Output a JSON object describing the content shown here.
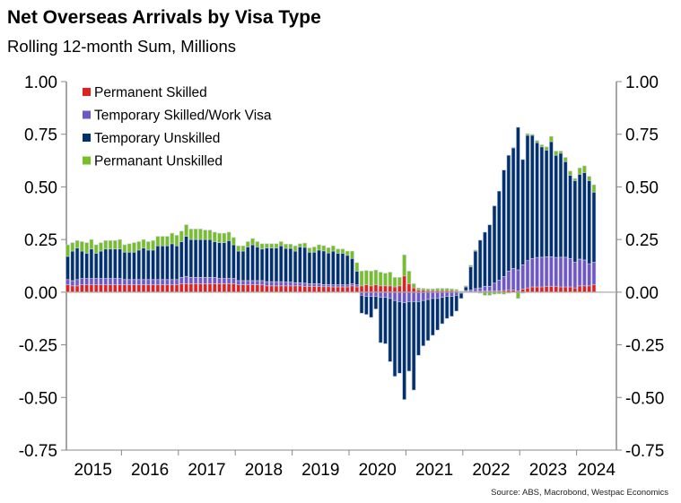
{
  "chart_data": {
    "type": "bar",
    "stacked": true,
    "title": "Net Overseas Arrivals by Visa Type",
    "subtitle": "Rolling 12-month Sum, Millions",
    "source": "Source: ABS, Macrobond, Westpac Economics",
    "x_start": "2015-01",
    "frequency": "monthly",
    "xlim": [
      2015.0,
      2024.7
    ],
    "ylim": [
      -0.75,
      1.0
    ],
    "yticks": [
      "1.00",
      "0.75",
      "0.50",
      "0.25",
      "0.00",
      "-0.25",
      "-0.50",
      "-0.75"
    ],
    "ytick_values": [
      1.0,
      0.75,
      0.5,
      0.25,
      0,
      -0.25,
      -0.5,
      -0.75
    ],
    "xtick_labels": [
      "2015",
      "2016",
      "2017",
      "2018",
      "2019",
      "2020",
      "2021",
      "2022",
      "2023",
      "2024"
    ],
    "legend_position": "top-left",
    "series": [
      {
        "name": "Permanent Skilled",
        "color": "#e3201b",
        "values": [
          0.035,
          0.03,
          0.03,
          0.035,
          0.035,
          0.035,
          0.035,
          0.035,
          0.035,
          0.035,
          0.035,
          0.035,
          0.035,
          0.035,
          0.035,
          0.035,
          0.035,
          0.035,
          0.035,
          0.035,
          0.035,
          0.035,
          0.035,
          0.035,
          0.04,
          0.04,
          0.04,
          0.04,
          0.04,
          0.04,
          0.04,
          0.04,
          0.04,
          0.04,
          0.04,
          0.04,
          0.035,
          0.035,
          0.035,
          0.035,
          0.035,
          0.035,
          0.03,
          0.03,
          0.03,
          0.03,
          0.03,
          0.03,
          0.03,
          0.03,
          0.028,
          0.028,
          0.028,
          0.028,
          0.026,
          0.026,
          0.025,
          0.025,
          0.025,
          0.025,
          0.03,
          0.025,
          0.03,
          0.035,
          0.03,
          0.035,
          0.03,
          0.03,
          0.03,
          0.025,
          0.03,
          0.077,
          0.04,
          0.02,
          0.01,
          0.01,
          0.008,
          0.008,
          0.008,
          0.008,
          0.008,
          0.008,
          0.005,
          0.003,
          0.003,
          0.003,
          0.004,
          0.004,
          0.005,
          0.005,
          0.005,
          0.006,
          0.008,
          0.01,
          0.01,
          0.005,
          0.015,
          0.02,
          0.025,
          0.025,
          0.025,
          0.028,
          0.028,
          0.028,
          0.025,
          0.025,
          0.025,
          0.02,
          0.03,
          0.03,
          0.03,
          0.035
        ]
      },
      {
        "name": "Temporary Skilled/Work Visa",
        "color": "#7055c8",
        "values": [
          0.025,
          0.025,
          0.03,
          0.03,
          0.03,
          0.03,
          0.03,
          0.03,
          0.03,
          0.03,
          0.03,
          0.03,
          0.025,
          0.025,
          0.025,
          0.025,
          0.025,
          0.025,
          0.025,
          0.025,
          0.025,
          0.025,
          0.025,
          0.025,
          0.03,
          0.035,
          0.03,
          0.03,
          0.03,
          0.03,
          0.03,
          0.03,
          0.025,
          0.025,
          0.025,
          0.025,
          0.02,
          0.02,
          0.02,
          0.02,
          0.02,
          0.02,
          0.02,
          0.02,
          0.02,
          0.02,
          0.018,
          0.018,
          0.015,
          0.015,
          0.015,
          0.012,
          0.012,
          0.012,
          0.01,
          0.01,
          0.01,
          0.01,
          0.01,
          0.01,
          0.01,
          0.01,
          -0.015,
          -0.02,
          -0.02,
          -0.02,
          -0.025,
          -0.025,
          -0.03,
          -0.04,
          -0.045,
          -0.05,
          -0.045,
          -0.045,
          -0.045,
          -0.04,
          -0.035,
          -0.03,
          -0.03,
          -0.025,
          -0.02,
          -0.02,
          -0.015,
          -0.005,
          0.005,
          0.007,
          0.013,
          0.016,
          0.023,
          0.023,
          0.038,
          0.051,
          0.066,
          0.09,
          0.103,
          0.101,
          0.115,
          0.13,
          0.135,
          0.14,
          0.141,
          0.14,
          0.14,
          0.137,
          0.141,
          0.141,
          0.135,
          0.122,
          0.127,
          0.123,
          0.105,
          0.107
        ]
      },
      {
        "name": "Temporary Unskilled",
        "color": "#00306e",
        "values": [
          0.11,
          0.14,
          0.15,
          0.13,
          0.12,
          0.14,
          0.12,
          0.13,
          0.14,
          0.14,
          0.14,
          0.14,
          0.13,
          0.13,
          0.13,
          0.14,
          0.15,
          0.14,
          0.14,
          0.16,
          0.16,
          0.16,
          0.17,
          0.16,
          0.17,
          0.19,
          0.18,
          0.18,
          0.18,
          0.18,
          0.18,
          0.17,
          0.17,
          0.17,
          0.18,
          0.16,
          0.14,
          0.14,
          0.16,
          0.17,
          0.16,
          0.15,
          0.16,
          0.16,
          0.16,
          0.17,
          0.16,
          0.16,
          0.15,
          0.17,
          0.17,
          0.15,
          0.15,
          0.16,
          0.16,
          0.15,
          0.16,
          0.15,
          0.15,
          0.14,
          0.12,
          0.065,
          -0.085,
          -0.086,
          -0.1,
          -0.06,
          -0.215,
          -0.22,
          -0.3,
          -0.36,
          -0.34,
          -0.46,
          -0.33,
          -0.42,
          -0.255,
          -0.215,
          -0.195,
          -0.175,
          -0.15,
          -0.125,
          -0.105,
          -0.095,
          -0.075,
          -0.025,
          0.017,
          0.11,
          0.178,
          0.227,
          0.257,
          0.292,
          0.367,
          0.423,
          0.506,
          0.55,
          0.572,
          0.677,
          0.5,
          0.595,
          0.585,
          0.545,
          0.524,
          0.507,
          0.547,
          0.485,
          0.494,
          0.454,
          0.395,
          0.388,
          0.403,
          0.415,
          0.395,
          0.333
        ]
      },
      {
        "name": "Permanant Unskilled",
        "color": "#77c023",
        "values": [
          0.055,
          0.04,
          0.035,
          0.045,
          0.05,
          0.045,
          0.04,
          0.04,
          0.04,
          0.04,
          0.04,
          0.045,
          0.035,
          0.04,
          0.045,
          0.04,
          0.04,
          0.04,
          0.045,
          0.045,
          0.045,
          0.045,
          0.05,
          0.05,
          0.05,
          0.055,
          0.05,
          0.05,
          0.05,
          0.045,
          0.045,
          0.045,
          0.045,
          0.045,
          0.04,
          0.035,
          0.025,
          0.025,
          0.025,
          0.03,
          0.025,
          0.025,
          0.02,
          0.02,
          0.02,
          0.02,
          0.02,
          0.02,
          0.025,
          0.015,
          0.02,
          0.02,
          0.025,
          0.025,
          0.025,
          0.025,
          0.025,
          0.02,
          0.02,
          0.02,
          0.035,
          0.04,
          0.07,
          0.068,
          0.07,
          0.07,
          0.065,
          0.06,
          0.065,
          0.045,
          0.04,
          0.1,
          0.06,
          0.02,
          0.01,
          0.008,
          0.008,
          0.008,
          0.01,
          0.01,
          0.01,
          0.008,
          0.008,
          0.002,
          0.005,
          0.008,
          0.005,
          -0.005,
          -0.015,
          -0.015,
          -0.01,
          -0.008,
          -0.01,
          -0.005,
          0.003,
          -0.03,
          -0.005,
          0.008,
          0.005,
          0.01,
          0.01,
          0.015,
          0.025,
          0.02,
          0.01,
          0.02,
          0.02,
          0.01,
          0.03,
          0.032,
          0.02,
          0.035
        ]
      }
    ]
  }
}
